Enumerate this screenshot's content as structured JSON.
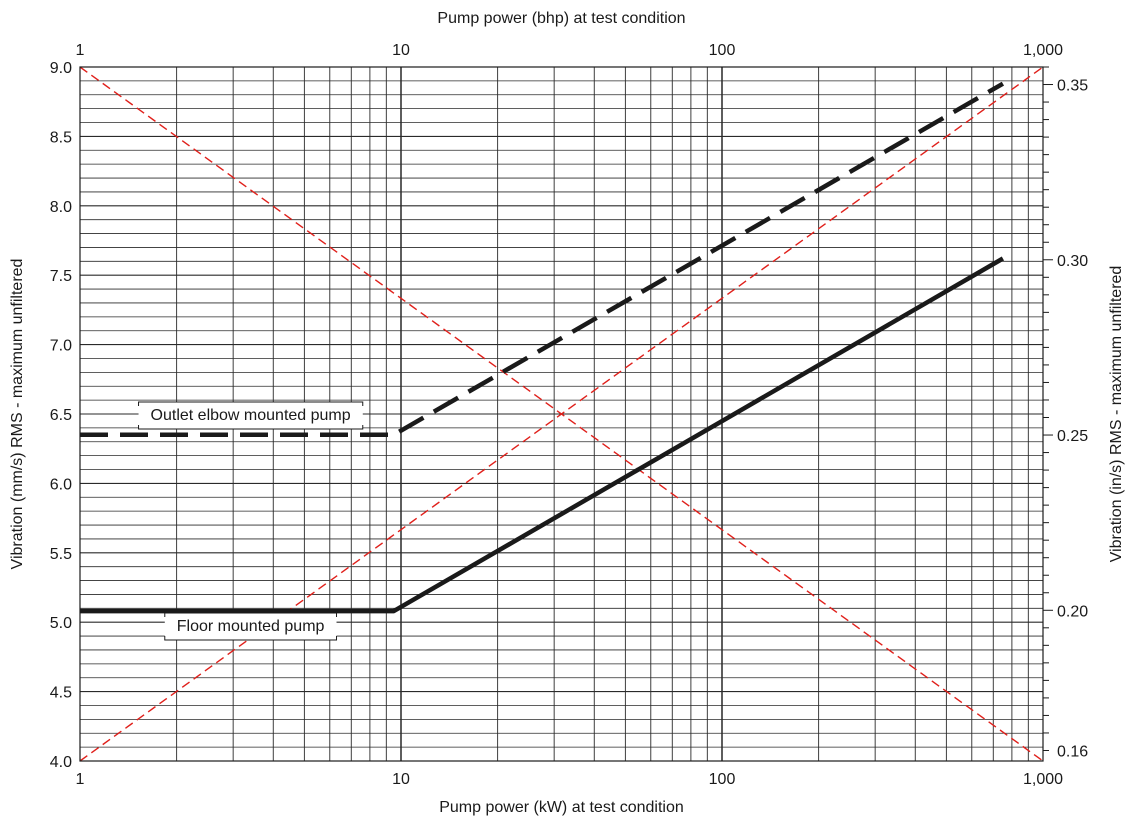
{
  "chart_data": {
    "type": "line",
    "xlabel_bottom": "Pump power (kW) at test condition",
    "xlabel_top": "Pump power (bhp) at test condition",
    "ylabel_left": "Vibration (mm/s) RMS - maximum unfiltered",
    "ylabel_right": "Vibration (in/s) RMS - maximum unfiltered",
    "x_scale": "log",
    "xlim": [
      1,
      1000
    ],
    "ylim": [
      4.0,
      9.0
    ],
    "x_ticks_bottom": [
      {
        "value": 1,
        "label": "1"
      },
      {
        "value": 10,
        "label": "10"
      },
      {
        "value": 100,
        "label": "100"
      },
      {
        "value": 1000,
        "label": "1,000"
      }
    ],
    "x_ticks_top": [
      {
        "value": 1,
        "label": "1"
      },
      {
        "value": 10,
        "label": "10"
      },
      {
        "value": 100,
        "label": "100"
      },
      {
        "value": 1000,
        "label": "1,000"
      }
    ],
    "y_ticks_left": [
      {
        "value": 4.0,
        "label": "4.0"
      },
      {
        "value": 4.5,
        "label": "4.5"
      },
      {
        "value": 5.0,
        "label": "5.0"
      },
      {
        "value": 5.5,
        "label": "5.5"
      },
      {
        "value": 6.0,
        "label": "6.0"
      },
      {
        "value": 6.5,
        "label": "6.5"
      },
      {
        "value": 7.0,
        "label": "7.0"
      },
      {
        "value": 7.5,
        "label": "7.5"
      },
      {
        "value": 8.0,
        "label": "8.0"
      },
      {
        "value": 8.5,
        "label": "8.5"
      },
      {
        "value": 9.0,
        "label": "9.0"
      }
    ],
    "y_ticks_right": [
      {
        "value": 0.16,
        "label": "0.16"
      },
      {
        "value": 0.2,
        "label": "0.20"
      },
      {
        "value": 0.25,
        "label": "0.25"
      },
      {
        "value": 0.3,
        "label": "0.30"
      },
      {
        "value": 0.35,
        "label": "0.35"
      }
    ],
    "grid": true,
    "series": [
      {
        "name": "Outlet elbow mounted pump",
        "style": "dashed",
        "color": "#1a1a1a",
        "points": [
          [
            1,
            6.35
          ],
          [
            9.5,
            6.35
          ],
          [
            750,
            8.88
          ]
        ]
      },
      {
        "name": "Floor mounted pump",
        "style": "solid",
        "color": "#1a1a1a",
        "points": [
          [
            1,
            5.08
          ],
          [
            9.5,
            5.08
          ],
          [
            750,
            7.62
          ]
        ]
      }
    ],
    "annotations": [
      {
        "text": "Outlet elbow mounted pump",
        "x": 3.4,
        "y": 6.5
      },
      {
        "text": "Floor mounted pump",
        "x": 3.4,
        "y": 4.98
      }
    ],
    "reference_lines": {
      "color": "#e0201b",
      "style": "dashed",
      "lines": [
        {
          "points": [
            [
              1,
              4.0
            ],
            [
              1000,
              9.0
            ]
          ]
        },
        {
          "points": [
            [
              1,
              9.0
            ],
            [
              1000,
              4.0
            ]
          ]
        }
      ]
    }
  }
}
